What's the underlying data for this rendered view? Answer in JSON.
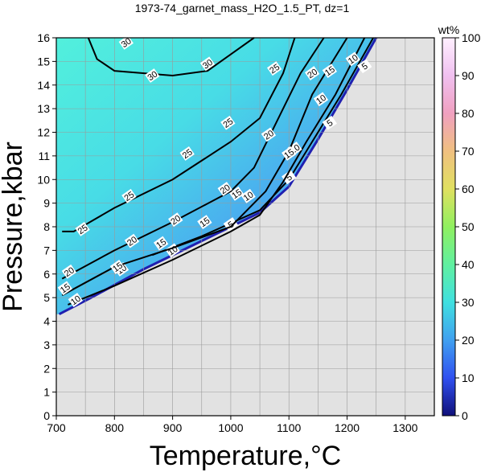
{
  "chart_data": {
    "type": "contour",
    "title": "1973-74_garnet_mass_H2O_1.5_PT, dz=1",
    "xlabel": "Temperature,°C",
    "ylabel": "Pressure,kbar",
    "xlim": [
      700,
      1350
    ],
    "ylim": [
      0,
      16
    ],
    "x_ticks": [
      700,
      800,
      900,
      1000,
      1100,
      1200,
      1300
    ],
    "y_ticks": [
      0,
      1,
      2,
      3,
      4,
      5,
      6,
      7,
      8,
      9,
      10,
      11,
      12,
      13,
      14,
      15,
      16
    ],
    "grid": true,
    "colorbar": {
      "label": "wt%",
      "range": [
        0,
        100
      ],
      "ticks": [
        0,
        10,
        20,
        30,
        40,
        50,
        60,
        70,
        80,
        90,
        100
      ],
      "colors": [
        "#10107a",
        "#3050f0",
        "#40a0f0",
        "#40e0e0",
        "#60f0a0",
        "#90f060",
        "#e0e060",
        "#f0c080",
        "#f0a0c0",
        "#f0c0f0",
        "#fff0ff"
      ]
    },
    "field_boundary": [
      [
        705,
        4.3
      ],
      [
        760,
        5.0
      ],
      [
        850,
        6.2
      ],
      [
        950,
        7.4
      ],
      [
        1050,
        8.6
      ],
      [
        1100,
        9.7
      ],
      [
        1150,
        11.7
      ],
      [
        1200,
        13.8
      ],
      [
        1250,
        16
      ]
    ],
    "contours": [
      {
        "level": 5,
        "points": [
          [
            865,
            6.8
          ],
          [
            950,
            7.6
          ],
          [
            1050,
            8.7
          ],
          [
            1100,
            10.0
          ],
          [
            1140,
            11.6
          ],
          [
            1190,
            13.6
          ],
          [
            1245,
            16
          ]
        ],
        "labels": [
          [
            1000,
            8.1
          ],
          [
            1100,
            10.1
          ],
          [
            1170,
            12.4
          ],
          [
            1230,
            14.8
          ]
        ]
      },
      {
        "level": 10,
        "points": [
          [
            720,
            4.7
          ],
          [
            800,
            5.5
          ],
          [
            900,
            6.6
          ],
          [
            1000,
            7.8
          ],
          [
            1050,
            8.5
          ],
          [
            1090,
            9.9
          ],
          [
            1130,
            11.6
          ],
          [
            1180,
            13.6
          ],
          [
            1230,
            16
          ]
        ],
        "labels": [
          [
            733,
            4.9
          ],
          [
            812,
            6.2
          ],
          [
            900,
            7.0
          ],
          [
            1030,
            9.3
          ],
          [
            1110,
            11.3
          ],
          [
            1155,
            13.4
          ],
          [
            1210,
            15.1
          ]
        ]
      },
      {
        "level": 15,
        "points": [
          [
            710,
            5.1
          ],
          [
            800,
            6.3
          ],
          [
            900,
            7.1
          ],
          [
            1000,
            8.0
          ],
          [
            1060,
            9.5
          ],
          [
            1100,
            11.2
          ],
          [
            1140,
            13.6
          ],
          [
            1200,
            16
          ]
        ],
        "labels": [
          [
            715,
            5.4
          ],
          [
            805,
            6.3
          ],
          [
            880,
            7.3
          ],
          [
            955,
            8.2
          ],
          [
            1010,
            9.4
          ],
          [
            1100,
            11.1
          ],
          [
            1170,
            14.6
          ]
        ]
      },
      {
        "level": 20,
        "points": [
          [
            710,
            5.8
          ],
          [
            800,
            7.0
          ],
          [
            900,
            8.2
          ],
          [
            1000,
            9.5
          ],
          [
            1040,
            10.5
          ],
          [
            1080,
            12.5
          ],
          [
            1120,
            14.5
          ],
          [
            1160,
            16
          ]
        ],
        "labels": [
          [
            722,
            6.1
          ],
          [
            830,
            7.4
          ],
          [
            905,
            8.3
          ],
          [
            990,
            9.6
          ],
          [
            1065,
            11.9
          ],
          [
            1140,
            14.5
          ]
        ]
      },
      {
        "level": 25,
        "points": [
          [
            710,
            7.8
          ],
          [
            730,
            7.8
          ],
          [
            800,
            8.8
          ],
          [
            900,
            10.0
          ],
          [
            1000,
            11.6
          ],
          [
            1050,
            12.6
          ],
          [
            1090,
            14.5
          ],
          [
            1110,
            16
          ]
        ],
        "labels": [
          [
            745,
            7.9
          ],
          [
            825,
            9.3
          ],
          [
            925,
            11.1
          ],
          [
            995,
            12.4
          ],
          [
            1075,
            14.7
          ]
        ]
      },
      {
        "level": 30,
        "points": [
          [
            755,
            16
          ],
          [
            770,
            15.1
          ],
          [
            800,
            14.6
          ],
          [
            900,
            14.4
          ],
          [
            960,
            14.6
          ],
          [
            1000,
            15.3
          ],
          [
            1040,
            16
          ]
        ],
        "labels": [
          [
            820,
            15.8
          ],
          [
            865,
            14.4
          ],
          [
            960,
            14.9
          ]
        ]
      }
    ]
  }
}
